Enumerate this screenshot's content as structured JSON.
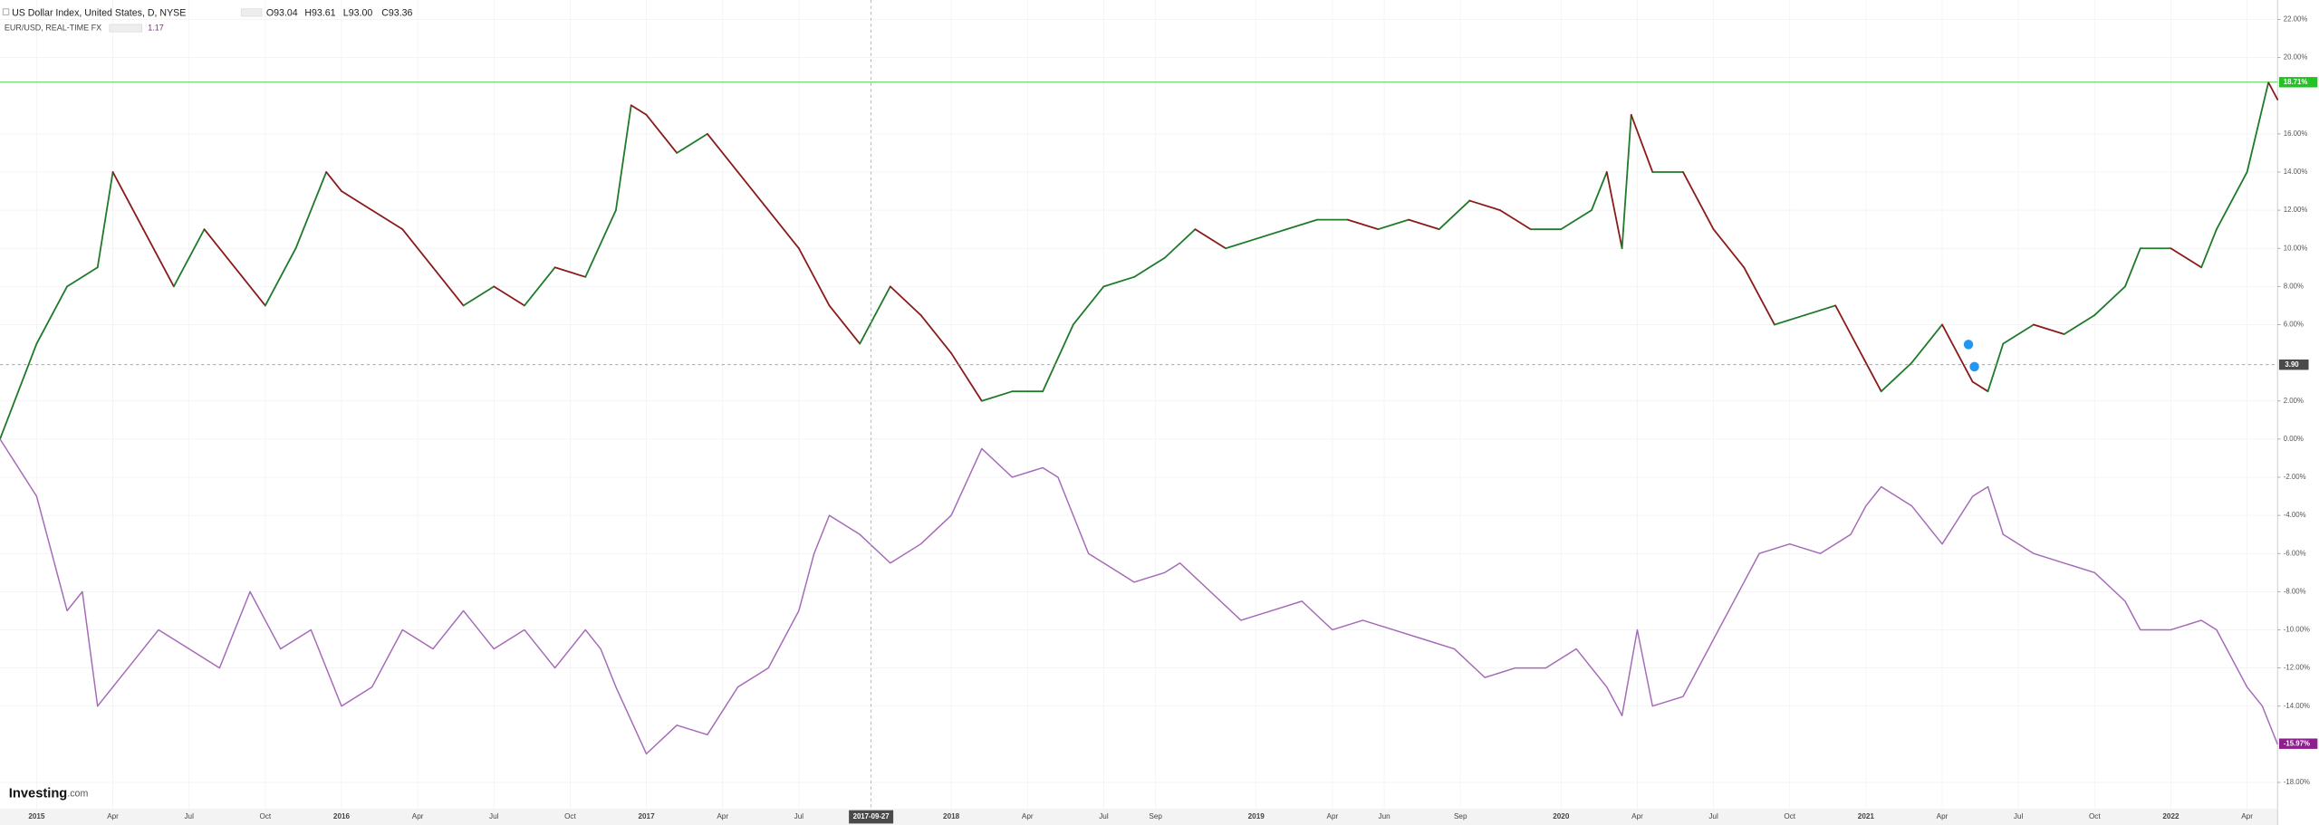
{
  "chart_data": {
    "type": "line",
    "header": {
      "ohlc": [
        "O93.04",
        "H93.61",
        "L93.00",
        "C93.36"
      ],
      "last": "1.17"
    },
    "logo": "Investing",
    "logo_suffix": ".com",
    "xlim": [
      2014.88,
      2022.35
    ],
    "ylim": [
      -19.38,
      23.02
    ],
    "grid": true,
    "xticks": [
      {
        "value": 2015,
        "label": "2015"
      },
      {
        "value": 2015.25,
        "label": "Apr"
      },
      {
        "value": 2015.5,
        "label": "Jul"
      },
      {
        "value": 2015.75,
        "label": "Oct"
      },
      {
        "value": 2016,
        "label": "2016"
      },
      {
        "value": 2016.25,
        "label": "Apr"
      },
      {
        "value": 2016.5,
        "label": "Jul"
      },
      {
        "value": 2016.75,
        "label": "Oct"
      },
      {
        "value": 2017,
        "label": "2017"
      },
      {
        "value": 2017.25,
        "label": "Apr"
      },
      {
        "value": 2017.5,
        "label": "Jul"
      },
      {
        "value": 2018,
        "label": "2018"
      },
      {
        "value": 2018.25,
        "label": "Apr"
      },
      {
        "value": 2018.5,
        "label": "Jul"
      },
      {
        "value": 2018.67,
        "label": "Sep"
      },
      {
        "value": 2019,
        "label": "2019"
      },
      {
        "value": 2019.25,
        "label": "Apr"
      },
      {
        "value": 2019.42,
        "label": "Jun"
      },
      {
        "value": 2019.67,
        "label": "Sep"
      },
      {
        "value": 2020,
        "label": "2020"
      },
      {
        "value": 2020.25,
        "label": "Apr"
      },
      {
        "value": 2020.5,
        "label": "Jul"
      },
      {
        "value": 2020.75,
        "label": "Oct"
      },
      {
        "value": 2021,
        "label": "2021"
      },
      {
        "value": 2021.25,
        "label": "Apr"
      },
      {
        "value": 2021.5,
        "label": "Jul"
      },
      {
        "value": 2021.75,
        "label": "Oct"
      },
      {
        "value": 2022,
        "label": "2022"
      },
      {
        "value": 2022.25,
        "label": "Apr"
      }
    ],
    "yticks": [
      {
        "value": 22,
        "label": "22.00%"
      },
      {
        "value": 20,
        "label": "20.00%"
      },
      {
        "value": 16,
        "label": "16.00%"
      },
      {
        "value": 14,
        "label": "14.00%"
      },
      {
        "value": 12,
        "label": "12.00%"
      },
      {
        "value": 10,
        "label": "10.00%"
      },
      {
        "value": 8,
        "label": "8.00%"
      },
      {
        "value": 6,
        "label": "6.00%"
      },
      {
        "value": 2,
        "label": "2.00%"
      },
      {
        "value": 0,
        "label": "0.00%"
      },
      {
        "value": -2,
        "label": "-2.00%"
      },
      {
        "value": -4,
        "label": "-4.00%"
      },
      {
        "value": -6,
        "label": "-6.00%"
      },
      {
        "value": -8,
        "label": "-8.00%"
      },
      {
        "value": -10,
        "label": "-10.00%"
      },
      {
        "value": -12,
        "label": "-12.00%"
      },
      {
        "value": -14,
        "label": "-14.00%"
      },
      {
        "value": -18,
        "label": "-18.00%"
      }
    ],
    "crosshair": {
      "date": "2017-09-27",
      "value": 3.9,
      "label": "3.90"
    },
    "price_tags": [
      {
        "value": 18.71,
        "label": "18.71%",
        "color": "#22c322"
      },
      {
        "value": -15.97,
        "label": "-15.97%",
        "color": "#8e1f8e"
      }
    ],
    "series": [
      {
        "name": "US Dollar Index, United States, D, NYSE",
        "up_color": "#1f7a2a",
        "down_color": "#8b1a1a",
        "x": [
          2014.88,
          2015,
          2015.1,
          2015.2,
          2015.25,
          2015.35,
          2015.45,
          2015.55,
          2015.65,
          2015.75,
          2015.85,
          2015.95,
          2016,
          2016.1,
          2016.2,
          2016.3,
          2016.4,
          2016.5,
          2016.6,
          2016.7,
          2016.8,
          2016.9,
          2016.95,
          2017,
          2017.1,
          2017.2,
          2017.3,
          2017.4,
          2017.5,
          2017.6,
          2017.7,
          2017.8,
          2017.9,
          2018,
          2018.1,
          2018.2,
          2018.3,
          2018.4,
          2018.5,
          2018.6,
          2018.7,
          2018.8,
          2018.9,
          2019,
          2019.1,
          2019.2,
          2019.3,
          2019.4,
          2019.5,
          2019.6,
          2019.7,
          2019.8,
          2019.9,
          2020,
          2020.1,
          2020.15,
          2020.2,
          2020.23,
          2020.3,
          2020.4,
          2020.5,
          2020.6,
          2020.7,
          2020.8,
          2020.9,
          2021,
          2021.05,
          2021.15,
          2021.25,
          2021.35,
          2021.4,
          2021.45,
          2021.55,
          2021.65,
          2021.75,
          2021.85,
          2021.9,
          2022,
          2022.1,
          2022.15,
          2022.25,
          2022.32,
          2022.35
        ],
        "values": [
          0,
          5,
          8,
          9,
          14,
          11,
          8,
          11,
          9,
          7,
          10,
          14,
          13,
          12,
          11,
          9,
          7,
          8,
          7,
          9,
          8.5,
          12,
          17.5,
          17,
          15,
          16,
          14,
          12,
          10,
          7,
          5,
          8,
          6.5,
          4.5,
          2,
          2.5,
          2.5,
          6,
          8,
          8.5,
          9.5,
          11,
          10,
          10.5,
          11,
          11.5,
          11.5,
          11,
          11.5,
          11,
          12.5,
          12,
          11,
          11,
          12,
          14,
          10,
          17,
          14,
          14,
          11,
          9,
          6,
          6.5,
          7,
          4,
          2.5,
          4,
          6,
          3,
          2.5,
          5,
          6,
          5.5,
          6.5,
          8,
          10,
          10,
          9,
          11,
          14,
          18.7,
          17.8
        ]
      },
      {
        "name": "EUR/USD, REAL-TIME FX",
        "color": "#a569b8",
        "x": [
          2014.88,
          2015,
          2015.05,
          2015.1,
          2015.15,
          2015.2,
          2015.3,
          2015.4,
          2015.5,
          2015.6,
          2015.7,
          2015.8,
          2015.9,
          2016,
          2016.1,
          2016.2,
          2016.3,
          2016.4,
          2016.5,
          2016.6,
          2016.7,
          2016.8,
          2016.85,
          2016.9,
          2017,
          2017.1,
          2017.2,
          2017.3,
          2017.4,
          2017.5,
          2017.55,
          2017.6,
          2017.7,
          2017.8,
          2017.9,
          2018,
          2018.1,
          2018.2,
          2018.3,
          2018.35,
          2018.45,
          2018.55,
          2018.6,
          2018.7,
          2018.75,
          2018.85,
          2018.95,
          2019.05,
          2019.15,
          2019.25,
          2019.35,
          2019.45,
          2019.55,
          2019.65,
          2019.75,
          2019.85,
          2019.95,
          2020.05,
          2020.15,
          2020.2,
          2020.25,
          2020.3,
          2020.4,
          2020.45,
          2020.55,
          2020.65,
          2020.75,
          2020.85,
          2020.95,
          2021,
          2021.05,
          2021.15,
          2021.25,
          2021.35,
          2021.4,
          2021.45,
          2021.55,
          2021.65,
          2021.75,
          2021.85,
          2021.9,
          2022,
          2022.1,
          2022.15,
          2022.25,
          2022.3,
          2022.35
        ],
        "values": [
          0,
          -3,
          -6,
          -9,
          -8,
          -14,
          -12,
          -10,
          -11,
          -12,
          -8,
          -11,
          -10,
          -14,
          -13,
          -10,
          -11,
          -9,
          -11,
          -10,
          -12,
          -10,
          -11,
          -13,
          -16.5,
          -15,
          -15.5,
          -13,
          -12,
          -9,
          -6,
          -4,
          -5,
          -6.5,
          -5.5,
          -4,
          -0.5,
          -2,
          -1.5,
          -2,
          -6,
          -7,
          -7.5,
          -7,
          -6.5,
          -8,
          -9.5,
          -9,
          -8.5,
          -10,
          -9.5,
          -10,
          -10.5,
          -11,
          -12.5,
          -12,
          -12,
          -11,
          -13,
          -14.5,
          -10,
          -14,
          -13.5,
          -12,
          -9,
          -6,
          -5.5,
          -6,
          -5,
          -3.5,
          -2.5,
          -3.5,
          -5.5,
          -3,
          -2.5,
          -5,
          -6,
          -6.5,
          -7,
          -8.5,
          -10,
          -10,
          -9.5,
          -10,
          -13,
          -14,
          -16
        ]
      }
    ]
  }
}
